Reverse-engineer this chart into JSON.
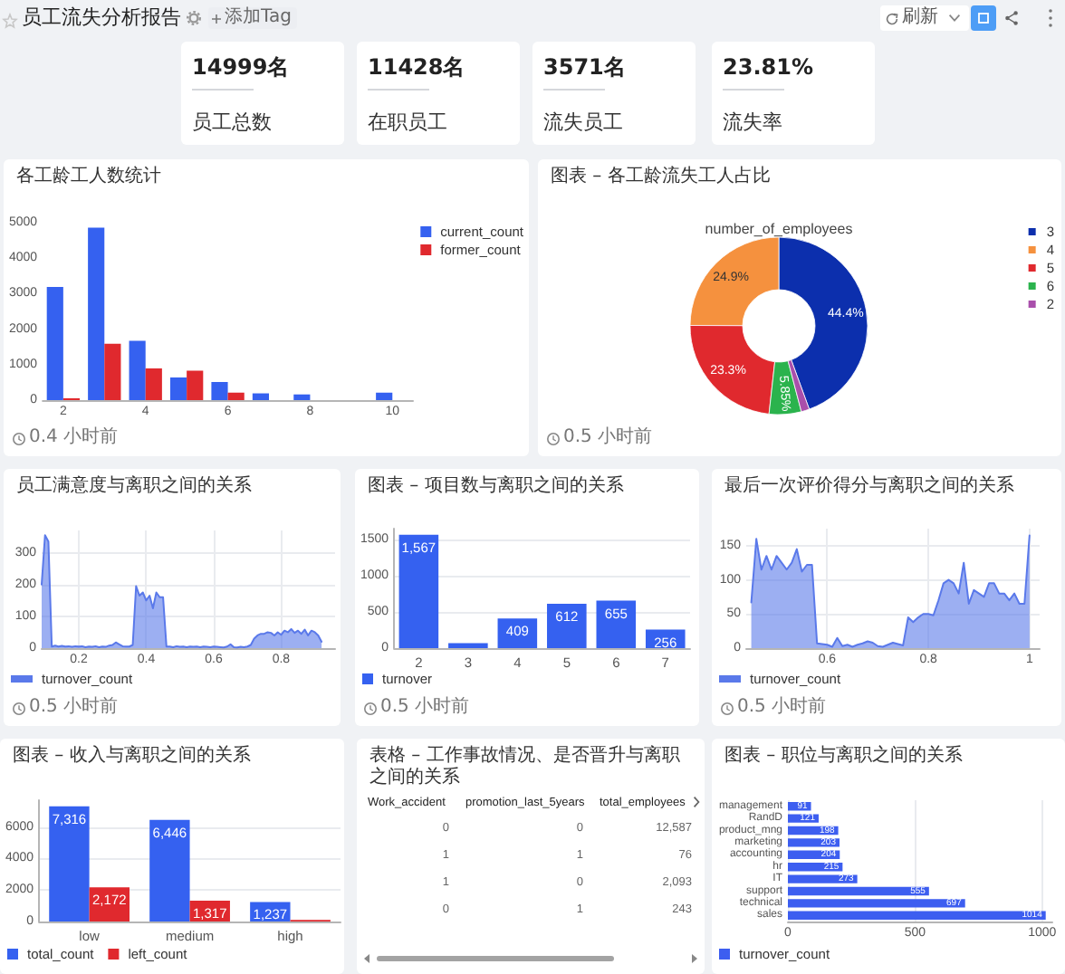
{
  "chart_data": [
    {
      "type": "other",
      "title": "员工流失分析报告",
      "annotations": [
        "添加Tag",
        "刷新",
        "14999名",
        "员工总数",
        "11428名",
        "在职员工",
        "3571名",
        "流失员工",
        "23.81%",
        "流失率"
      ]
    },
    {
      "type": "bar",
      "title": "各工龄工人数统计",
      "x": [
        2,
        3,
        4,
        5,
        6,
        7,
        8,
        10
      ],
      "series": [
        {
          "name": "current_count",
          "color": "#3561f0",
          "values": [
            3190,
            4860,
            1670,
            640,
            510,
            190,
            160,
            210
          ]
        },
        {
          "name": "former_count",
          "color": "#e0292e",
          "values": [
            50,
            1590,
            890,
            830,
            210,
            null,
            null,
            null
          ]
        }
      ],
      "xlim": [
        1.5,
        10.5
      ],
      "xticks": [
        2,
        4,
        6,
        8,
        10
      ],
      "ylim": [
        0,
        5000
      ],
      "yticks": [
        0,
        1000,
        2000,
        3000,
        4000,
        5000
      ],
      "legend": "top right",
      "annotations": [
        "0.4 小时前"
      ]
    },
    {
      "type": "donut",
      "title": "图表 – 各工龄流失工人占比",
      "subtitle": "number_of_employees",
      "categories": [
        "3",
        "4",
        "5",
        "6",
        "2"
      ],
      "values": [
        44.4,
        24.9,
        23.3,
        5.85,
        1.48
      ],
      "colors": [
        "#0c2fad",
        "#f5913e",
        "#e0292e",
        "#2bb34d",
        "#a94fab"
      ],
      "value_labels": [
        "44.4%",
        "24.9%",
        "23.3%",
        "5.85%",
        null
      ],
      "legend": "top right",
      "annotations": [
        "0.5 小时前"
      ]
    },
    {
      "type": "area",
      "title": "员工满意度与离职之间的关系",
      "x": [
        0.09,
        0.1,
        0.11,
        0.12,
        0.13,
        0.14,
        0.15,
        0.16,
        0.17,
        0.18,
        0.19,
        0.2,
        0.21,
        0.22,
        0.23,
        0.24,
        0.25,
        0.26,
        0.27,
        0.28,
        0.29,
        0.3,
        0.31,
        0.32,
        0.33,
        0.34,
        0.35,
        0.36,
        0.37,
        0.38,
        0.39,
        0.4,
        0.41,
        0.42,
        0.43,
        0.44,
        0.45,
        0.46,
        0.47,
        0.48,
        0.49,
        0.5,
        0.51,
        0.52,
        0.53,
        0.54,
        0.55,
        0.56,
        0.57,
        0.58,
        0.59,
        0.6,
        0.61,
        0.62,
        0.63,
        0.64,
        0.65,
        0.66,
        0.67,
        0.68,
        0.69,
        0.7,
        0.71,
        0.72,
        0.73,
        0.74,
        0.75,
        0.76,
        0.77,
        0.78,
        0.79,
        0.8,
        0.81,
        0.82,
        0.83,
        0.84,
        0.85,
        0.86,
        0.87,
        0.88,
        0.89,
        0.9,
        0.91,
        0.92
      ],
      "series": [
        {
          "name": "turnover_count",
          "color": "#5a79ea",
          "values": [
            200,
            355,
            335,
            5,
            8,
            5,
            7,
            5,
            6,
            4,
            6,
            5,
            6,
            3,
            5,
            4,
            6,
            3,
            5,
            4,
            8,
            10,
            18,
            12,
            6,
            5,
            5,
            10,
            195,
            165,
            175,
            150,
            165,
            125,
            175,
            160,
            160,
            5,
            5,
            3,
            6,
            4,
            5,
            3,
            5,
            4,
            5,
            3,
            5,
            4,
            3,
            5,
            4,
            3,
            2,
            5,
            12,
            3,
            2,
            4,
            3,
            5,
            10,
            30,
            40,
            45,
            45,
            50,
            48,
            40,
            50,
            42,
            55,
            50,
            60,
            48,
            55,
            45,
            58,
            40,
            55,
            50,
            40,
            20
          ]
        }
      ],
      "xlim": [
        0.09,
        0.96
      ],
      "xticks": [
        0.2,
        0.4,
        0.6,
        0.8
      ],
      "ylim": [
        0,
        370
      ],
      "yticks": [
        0,
        100,
        200,
        300
      ],
      "grid": true,
      "legend": "bottom left",
      "annotations": [
        "0.5 小时前"
      ]
    },
    {
      "type": "bar",
      "title": "图表 – 项目数与离职之间的关系",
      "categories": [
        "2",
        "3",
        "4",
        "5",
        "6",
        "7"
      ],
      "series": [
        {
          "name": "turnover",
          "color": "#3561f0",
          "values": [
            1567,
            70,
            409,
            612,
            655,
            256
          ],
          "value_labels": [
            "1,567",
            null,
            "409",
            "612",
            "655",
            "256"
          ]
        }
      ],
      "ylim": [
        0,
        1650
      ],
      "yticks": [
        0,
        500,
        1000,
        1500
      ],
      "grid": "y",
      "legend": "bottom left",
      "annotations": [
        "0.5 小时前"
      ]
    },
    {
      "type": "area",
      "title": "最后一次评价得分与离职之间的关系",
      "x": [
        0.45,
        0.46,
        0.47,
        0.48,
        0.49,
        0.5,
        0.51,
        0.52,
        0.53,
        0.54,
        0.55,
        0.56,
        0.57,
        0.58,
        0.59,
        0.6,
        0.61,
        0.62,
        0.63,
        0.64,
        0.65,
        0.66,
        0.67,
        0.68,
        0.69,
        0.7,
        0.71,
        0.72,
        0.73,
        0.74,
        0.75,
        0.76,
        0.77,
        0.78,
        0.79,
        0.8,
        0.81,
        0.82,
        0.83,
        0.84,
        0.85,
        0.86,
        0.87,
        0.88,
        0.89,
        0.9,
        0.91,
        0.92,
        0.93,
        0.94,
        0.95,
        0.96,
        0.97,
        0.98,
        0.99,
        1
      ],
      "series": [
        {
          "name": "turnover_count",
          "color": "#5a79ea",
          "values": [
            67,
            160,
            115,
            135,
            115,
            135,
            125,
            115,
            125,
            145,
            112,
            122,
            122,
            7,
            6,
            5,
            2,
            15,
            3,
            5,
            2,
            5,
            7,
            10,
            8,
            3,
            2,
            5,
            8,
            6,
            4,
            45,
            38,
            45,
            50,
            50,
            48,
            70,
            95,
            100,
            95,
            80,
            125,
            65,
            85,
            80,
            75,
            95,
            95,
            80,
            80,
            70,
            80,
            65,
            65,
            165
          ]
        }
      ],
      "xlim": [
        0.44,
        1.02
      ],
      "xticks": [
        0.6,
        0.8,
        1
      ],
      "ylim": [
        0,
        175
      ],
      "yticks": [
        0,
        50,
        100,
        150
      ],
      "grid": true,
      "legend": "bottom left",
      "annotations": [
        "0.5 小时前"
      ]
    },
    {
      "type": "bar",
      "title": "图表 – 收入与离职之间的关系",
      "categories": [
        "low",
        "medium",
        "high"
      ],
      "series": [
        {
          "name": "total_count",
          "color": "#3561f0",
          "values": [
            7316,
            6446,
            1237
          ],
          "value_labels": [
            "7,316",
            "6,446",
            "1,237"
          ]
        },
        {
          "name": "left_count",
          "color": "#e0292e",
          "values": [
            2172,
            1317,
            100
          ],
          "value_labels": [
            "2,172",
            "1,317",
            null
          ]
        }
      ],
      "ylim": [
        0,
        7700
      ],
      "yticks": [
        0,
        2000,
        4000,
        6000
      ],
      "grid": "y",
      "legend": "bottom left"
    },
    {
      "type": "other",
      "title": "表格 – 工作事故情况、是否晋升与离职之间的关系",
      "categories": [
        "Work_accident",
        "promotion_last_5years",
        "total_employees"
      ],
      "cell_labels": [
        [
          "0",
          "0",
          "12,587"
        ],
        [
          "1",
          "1",
          "76"
        ],
        [
          "1",
          "0",
          "2,093"
        ],
        [
          "0",
          "1",
          "243"
        ]
      ]
    },
    {
      "type": "bar",
      "orientation": "horizontal",
      "title": "图表 – 职位与离职之间的关系",
      "categories": [
        "management",
        "RandD",
        "product_mng",
        "marketing",
        "accounting",
        "hr",
        "IT",
        "support",
        "technical",
        "sales"
      ],
      "series": [
        {
          "name": "turnover_count",
          "color": "#3d5ef0",
          "values": [
            91,
            121,
            198,
            203,
            204,
            215,
            273,
            555,
            697,
            1014
          ]
        }
      ],
      "data_labels": true,
      "xlim": [
        0,
        1040
      ],
      "xticks": [
        0,
        500,
        1000
      ],
      "grid": "x",
      "legend": "bottom left"
    }
  ]
}
